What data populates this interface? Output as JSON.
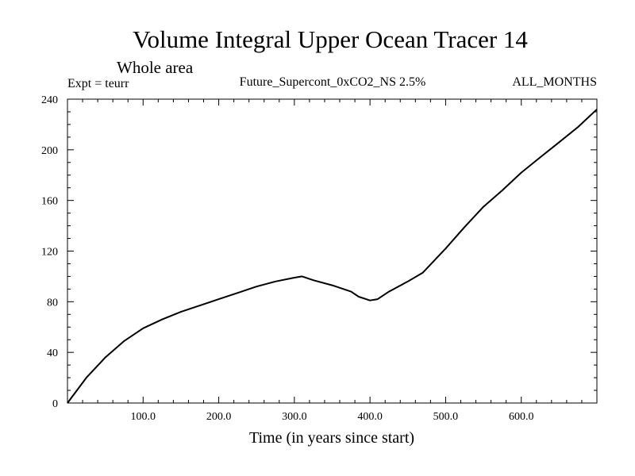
{
  "chart_data": {
    "type": "line",
    "title": "Volume Integral Upper Ocean Tracer 14",
    "subtitle": "Whole area",
    "left_label": "Expt = teurr",
    "center_label": "Future_Supercont_0xCO2_NS 2.5%",
    "right_label": "ALL_MONTHS",
    "xlabel": "Time (in years since start)",
    "ylabel": "",
    "xlim": [
      0,
      700
    ],
    "ylim": [
      0,
      240
    ],
    "x_ticks": [
      100,
      200,
      300,
      400,
      500,
      600
    ],
    "x_tick_labels": [
      "100.0",
      "200.0",
      "300.0",
      "400.0",
      "500.0",
      "600.0"
    ],
    "y_ticks": [
      0,
      40,
      80,
      120,
      160,
      200,
      240
    ],
    "y_tick_labels": [
      "0",
      "40",
      "80",
      "120",
      "160",
      "200",
      "240"
    ],
    "grid": false,
    "series": [
      {
        "x": [
          0,
          25,
          50,
          75,
          100,
          125,
          150,
          175,
          200,
          225,
          250,
          275,
          300,
          310,
          325,
          350,
          375,
          385,
          400,
          410,
          425,
          450,
          470,
          500,
          525,
          550,
          575,
          600,
          625,
          650,
          675,
          700
        ],
        "y": [
          0,
          20,
          36,
          49,
          59,
          66,
          72,
          77,
          82,
          87,
          92,
          96,
          99,
          100,
          97,
          93,
          88,
          84,
          81,
          82,
          88,
          96,
          103,
          122,
          139,
          155,
          168,
          182,
          194,
          206,
          218,
          232
        ]
      }
    ],
    "colors": {
      "line": "#000000",
      "axis": "#000000",
      "background": "#ffffff"
    }
  }
}
